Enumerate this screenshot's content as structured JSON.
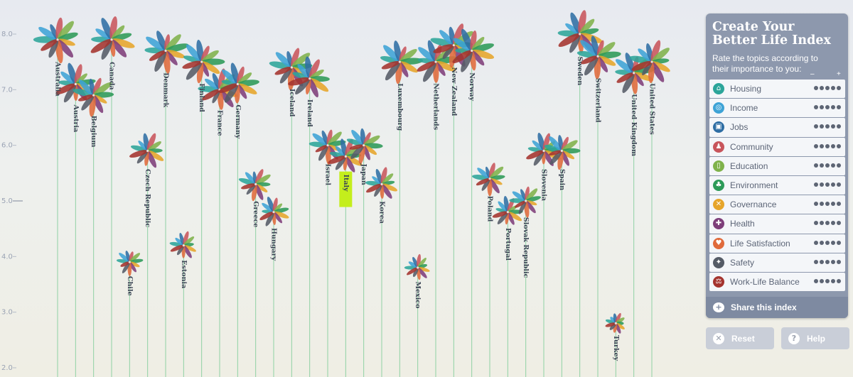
{
  "panel": {
    "title_line1": "Create Your",
    "title_line2": "Better Life Index",
    "subtitle": "Rate the topics according to their importance to you:",
    "minus_label": "–",
    "plus_label": "+",
    "topics": [
      {
        "label": "Housing",
        "icon": "house-icon",
        "glyph": "⌂",
        "color": "#2ca59a",
        "rating": 5
      },
      {
        "label": "Income",
        "icon": "coins-icon",
        "glyph": "◎",
        "color": "#3ea3d6",
        "rating": 5
      },
      {
        "label": "Jobs",
        "icon": "briefcase-icon",
        "glyph": "▣",
        "color": "#2f6ea4",
        "rating": 5
      },
      {
        "label": "Community",
        "icon": "people-icon",
        "glyph": "♟",
        "color": "#c8555c",
        "rating": 5
      },
      {
        "label": "Education",
        "icon": "book-icon",
        "glyph": "▯",
        "color": "#7fb24b",
        "rating": 5
      },
      {
        "label": "Environment",
        "icon": "tree-icon",
        "glyph": "♣",
        "color": "#2c9a58",
        "rating": 5
      },
      {
        "label": "Governance",
        "icon": "handshake-icon",
        "glyph": "✕",
        "color": "#e6a52a",
        "rating": 5
      },
      {
        "label": "Health",
        "icon": "cross-icon",
        "glyph": "✚",
        "color": "#7e3e7a",
        "rating": 5
      },
      {
        "label": "Life Satisfaction",
        "icon": "heart-icon",
        "glyph": "♥",
        "color": "#e06a3b",
        "rating": 5
      },
      {
        "label": "Safety",
        "icon": "runner-icon",
        "glyph": "✦",
        "color": "#555b66",
        "rating": 5
      },
      {
        "label": "Work-Life Balance",
        "icon": "scale-icon",
        "glyph": "⚖",
        "color": "#a4332e",
        "rating": 5
      }
    ],
    "share_label": "Share this index",
    "reset_label": "Reset",
    "help_label": "Help"
  },
  "colors": {
    "topic_petals": [
      "#2ca59a",
      "#3ea3d6",
      "#2f6ea4",
      "#c8555c",
      "#7fb24b",
      "#2c9a58",
      "#e6a52a",
      "#7e3e7a",
      "#e06a3b",
      "#555b66",
      "#a4332e"
    ],
    "panel_bg": "#8d98ad",
    "highlight": "#c4ee1c"
  },
  "chart_data": {
    "type": "scatter",
    "ylim": [
      2.0,
      8.5
    ],
    "yticks": [
      "2.0",
      "3.0",
      "4.0",
      "5.0",
      "6.0",
      "7.0",
      "8.0"
    ],
    "highlighted": "Italy",
    "countries": [
      {
        "name": "Australia",
        "score": 7.9
      },
      {
        "name": "Austria",
        "score": 7.1
      },
      {
        "name": "Belgium",
        "score": 6.9
      },
      {
        "name": "Canada",
        "score": 7.9
      },
      {
        "name": "Chile",
        "score": 3.9
      },
      {
        "name": "Czech Republic",
        "score": 5.9
      },
      {
        "name": "Denmark",
        "score": 7.7
      },
      {
        "name": "Estonia",
        "score": 4.2
      },
      {
        "name": "Finland",
        "score": 7.5
      },
      {
        "name": "France",
        "score": 7.0
      },
      {
        "name": "Germany",
        "score": 7.1
      },
      {
        "name": "Greece",
        "score": 5.3
      },
      {
        "name": "Hungary",
        "score": 4.8
      },
      {
        "name": "Iceland",
        "score": 7.4
      },
      {
        "name": "Ireland",
        "score": 7.2
      },
      {
        "name": "Israel",
        "score": 6.0
      },
      {
        "name": "Italy",
        "score": 5.8
      },
      {
        "name": "Japan",
        "score": 6.0
      },
      {
        "name": "Korea",
        "score": 5.3
      },
      {
        "name": "Luxembourg",
        "score": 7.5
      },
      {
        "name": "Mexico",
        "score": 3.8
      },
      {
        "name": "Netherlands",
        "score": 7.5
      },
      {
        "name": "New Zealand",
        "score": 7.8
      },
      {
        "name": "Norway",
        "score": 7.7
      },
      {
        "name": "Poland",
        "score": 5.4
      },
      {
        "name": "Portugal",
        "score": 4.8
      },
      {
        "name": "Slovak Republic",
        "score": 5.0
      },
      {
        "name": "Slovenia",
        "score": 5.9
      },
      {
        "name": "Spain",
        "score": 5.9
      },
      {
        "name": "Sweden",
        "score": 8.0
      },
      {
        "name": "Switzerland",
        "score": 7.6
      },
      {
        "name": "Turkey",
        "score": 2.8
      },
      {
        "name": "United Kingdom",
        "score": 7.3
      },
      {
        "name": "United States",
        "score": 7.5
      }
    ]
  }
}
